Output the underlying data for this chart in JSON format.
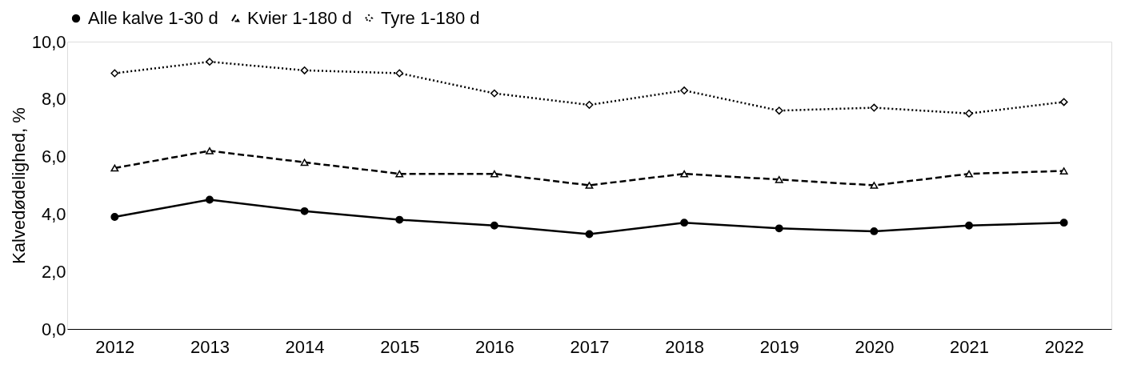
{
  "chart_data": {
    "type": "line",
    "ylabel": "Kalvedødelighed, %",
    "categories": [
      "2012",
      "2013",
      "2014",
      "2015",
      "2016",
      "2017",
      "2018",
      "2019",
      "2020",
      "2021",
      "2022"
    ],
    "series": [
      {
        "name": "Alle kalve 1-30 d",
        "color": "#000000",
        "marker": "circle",
        "line_style": "solid",
        "values": [
          3.9,
          4.5,
          4.1,
          3.8,
          3.6,
          3.3,
          3.7,
          3.5,
          3.4,
          3.6,
          3.7
        ]
      },
      {
        "name": "Kvier 1-180 d",
        "color": "#000000",
        "marker": "triangle",
        "line_style": "dashed",
        "values": [
          5.6,
          6.2,
          5.8,
          5.4,
          5.4,
          5.0,
          5.4,
          5.2,
          5.0,
          5.4,
          5.5
        ]
      },
      {
        "name": "Tyre 1-180 d",
        "color": "#000000",
        "marker": "diamond",
        "line_style": "dotted",
        "values": [
          8.9,
          9.3,
          9.0,
          8.9,
          8.2,
          7.8,
          8.3,
          7.6,
          7.7,
          7.5,
          7.9
        ]
      }
    ],
    "ylim": [
      0,
      10
    ],
    "yticks": [
      {
        "value": 0,
        "label": "0,0"
      },
      {
        "value": 2,
        "label": "2,0"
      },
      {
        "value": 4,
        "label": "4,0"
      },
      {
        "value": 6,
        "label": "6,0"
      },
      {
        "value": 8,
        "label": "8,0"
      },
      {
        "value": 10,
        "label": "10,0"
      }
    ],
    "grid": false,
    "legend": "top"
  }
}
